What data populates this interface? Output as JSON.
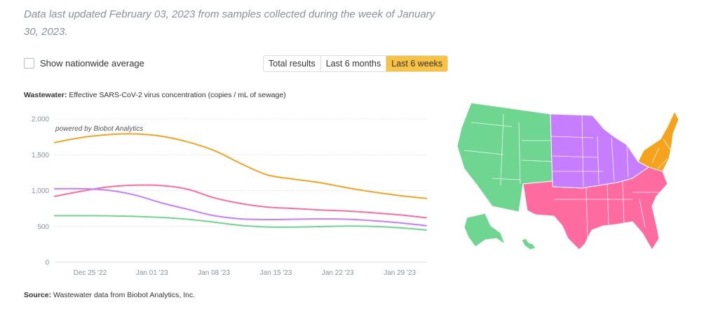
{
  "header": {
    "updated_text": "Data last updated February 03, 2023 from samples collected during the week of January 30, 2023."
  },
  "controls": {
    "nationwide_label": "Show nationwide average",
    "nationwide_checked": false,
    "ranges": [
      "Total results",
      "Last 6 months",
      "Last 6 weeks"
    ],
    "active_range": "Last 6 weeks",
    "active_color": "#f8c243"
  },
  "chart_title": {
    "bold": "Wastewater:",
    "rest": " Effective SARS-CoV-2 virus concentration (copies / mL of sewage)"
  },
  "watermark": "powered by Biobot Analytics",
  "source": {
    "bold": "Source:",
    "rest": " Wastewater data from Biobot Analytics, Inc."
  },
  "chart_data": {
    "type": "line",
    "x_ticks": [
      "Dec 25 '22",
      "Jan 01 '23",
      "Jan 08 '23",
      "Jan 15 '23",
      "Jan 22 '23",
      "Jan 29 '23"
    ],
    "y_ticks": [
      "0",
      "500",
      "1,000",
      "1,500",
      "2,000"
    ],
    "ylim": [
      0,
      2000
    ],
    "x": [
      "2022-12-21",
      "2022-12-24",
      "2022-12-27",
      "2022-12-30",
      "2023-01-02",
      "2023-01-05",
      "2023-01-08",
      "2023-01-11",
      "2023-01-14",
      "2023-01-17",
      "2023-01-20",
      "2023-01-23",
      "2023-01-26",
      "2023-01-29",
      "2023-02-01"
    ],
    "series": [
      {
        "color": "#f5a31d",
        "values": [
          1670,
          1740,
          1780,
          1790,
          1760,
          1680,
          1560,
          1380,
          1220,
          1160,
          1110,
          1040,
          980,
          930,
          890
        ]
      },
      {
        "color": "#ff6b9f",
        "values": [
          920,
          990,
          1050,
          1075,
          1070,
          1020,
          900,
          820,
          770,
          750,
          730,
          715,
          690,
          660,
          620
        ]
      },
      {
        "color": "#c77dff",
        "values": [
          1025,
          1025,
          1005,
          940,
          830,
          740,
          650,
          605,
          595,
          600,
          605,
          600,
          580,
          550,
          510
        ]
      },
      {
        "color": "#6ed691",
        "values": [
          650,
          650,
          648,
          640,
          625,
          600,
          560,
          515,
          492,
          490,
          498,
          505,
          500,
          480,
          450
        ]
      }
    ],
    "grid": true
  },
  "map": {
    "regions": [
      {
        "color": "#6ed691"
      },
      {
        "color": "#c77dff"
      },
      {
        "color": "#ff6b9f"
      },
      {
        "color": "#f5a31d"
      }
    ]
  }
}
